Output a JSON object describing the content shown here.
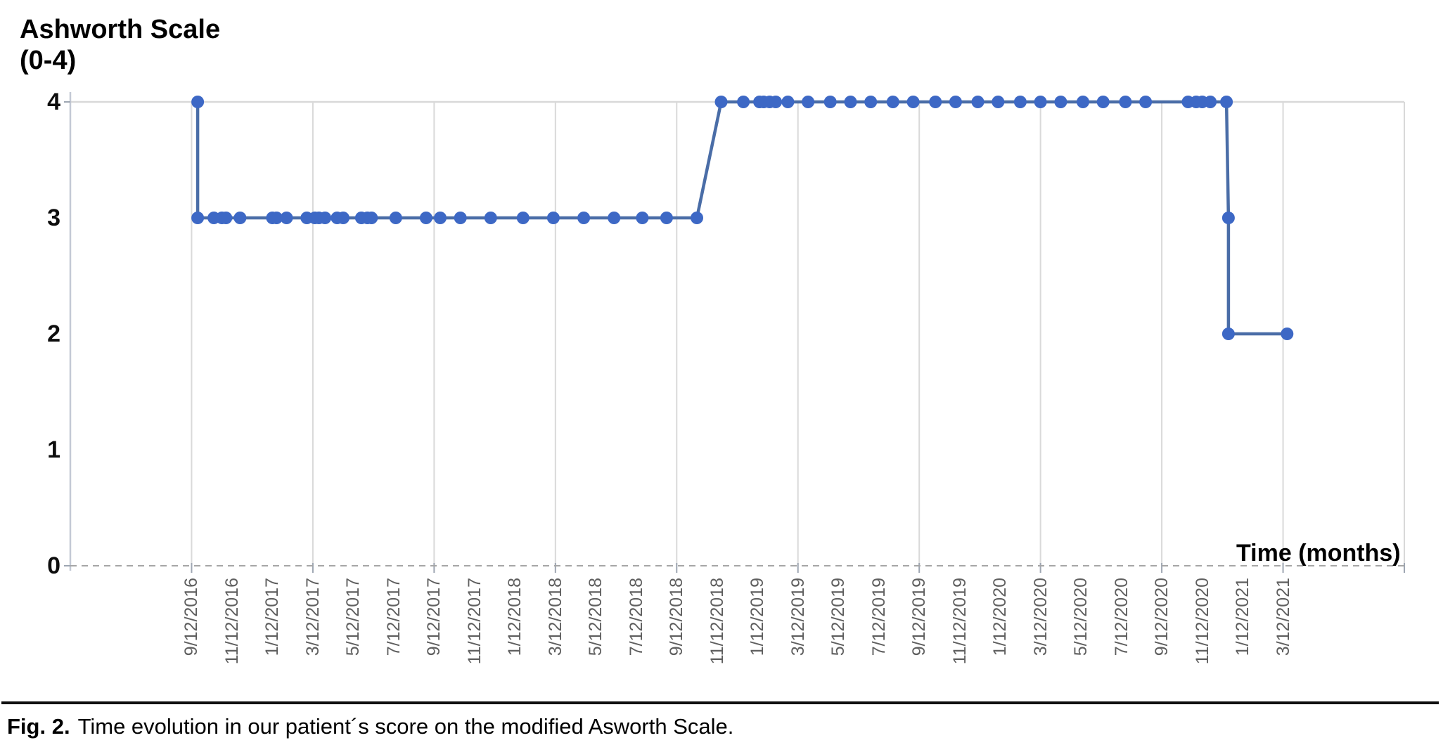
{
  "chart": {
    "title_line1": "Ashworth Scale",
    "title_line2": "(0-4)",
    "x_axis_title": "Time (months)"
  },
  "caption": {
    "prefix": "Fig. 2.",
    "text": "Time evolution in our patient´s score on the modified Asworth Scale."
  },
  "chart_data": {
    "type": "line",
    "title": "Ashworth Scale (0-4)",
    "xlabel": "Time (months)",
    "ylabel": "Ashworth Scale (0-4)",
    "ylim": [
      0,
      4
    ],
    "yticks": [
      4,
      3,
      2,
      1,
      0
    ],
    "x_tick_labels": [
      "9/12/2016",
      "11/12/2016",
      "1/12/2017",
      "3/12/2017",
      "5/12/2017",
      "7/12/2017",
      "9/12/2017",
      "11/12/2017",
      "1/12/2018",
      "3/12/2018",
      "5/12/2018",
      "7/12/2018",
      "9/12/2018",
      "11/12/2018",
      "1/12/2019",
      "3/12/2019",
      "5/12/2019",
      "7/12/2019",
      "9/12/2019",
      "11/12/2019",
      "1/12/2020",
      "3/12/2020",
      "5/12/2020",
      "7/12/2020",
      "9/12/2020",
      "11/12/2020",
      "1/12/2021",
      "3/12/2021"
    ],
    "x_tick_interval_months": 2,
    "x_axis_range_months": [
      -6,
      60
    ],
    "x_gridline_interval_months": 6,
    "grid": "vertical-only, plus top line at y=4 and dashed baseline at y=0",
    "legend": "none",
    "colors": {
      "marker": "#3d68c5",
      "line": "#4a6da7",
      "gridline": "#d9d9d9",
      "axis_line": "#c3c9d5",
      "dashed_baseline": "#a6a6a6",
      "tick_label": "#5f5f5f",
      "text": "#000000"
    },
    "points_note": "points are [months since 9/12/2016, score]",
    "points": [
      [
        0.3,
        4
      ],
      [
        0.3,
        3
      ],
      [
        1.1,
        3
      ],
      [
        1.5,
        3
      ],
      [
        1.7,
        3
      ],
      [
        2.4,
        3
      ],
      [
        4.0,
        3
      ],
      [
        4.2,
        3
      ],
      [
        4.7,
        3
      ],
      [
        5.7,
        3
      ],
      [
        6.1,
        3
      ],
      [
        6.3,
        3
      ],
      [
        6.6,
        3
      ],
      [
        7.2,
        3
      ],
      [
        7.5,
        3
      ],
      [
        8.4,
        3
      ],
      [
        8.7,
        3
      ],
      [
        8.9,
        3
      ],
      [
        10.1,
        3
      ],
      [
        11.6,
        3
      ],
      [
        12.3,
        3
      ],
      [
        13.3,
        3
      ],
      [
        14.8,
        3
      ],
      [
        16.4,
        3
      ],
      [
        17.9,
        3
      ],
      [
        19.4,
        3
      ],
      [
        20.9,
        3
      ],
      [
        22.3,
        3
      ],
      [
        23.5,
        3
      ],
      [
        25.0,
        3
      ],
      [
        26.2,
        4
      ],
      [
        27.3,
        4
      ],
      [
        28.1,
        4
      ],
      [
        28.3,
        4
      ],
      [
        28.6,
        4
      ],
      [
        28.9,
        4
      ],
      [
        29.5,
        4
      ],
      [
        30.5,
        4
      ],
      [
        31.6,
        4
      ],
      [
        32.6,
        4
      ],
      [
        33.6,
        4
      ],
      [
        34.7,
        4
      ],
      [
        35.7,
        4
      ],
      [
        36.8,
        4
      ],
      [
        37.8,
        4
      ],
      [
        38.9,
        4
      ],
      [
        39.9,
        4
      ],
      [
        41.0,
        4
      ],
      [
        42.0,
        4
      ],
      [
        43.0,
        4
      ],
      [
        44.1,
        4
      ],
      [
        45.1,
        4
      ],
      [
        46.2,
        4
      ],
      [
        47.2,
        4
      ],
      [
        49.3,
        4
      ],
      [
        49.7,
        4
      ],
      [
        50.0,
        4
      ],
      [
        50.4,
        4
      ],
      [
        51.2,
        4
      ],
      [
        51.3,
        3
      ],
      [
        51.3,
        2
      ],
      [
        54.2,
        2
      ]
    ]
  }
}
